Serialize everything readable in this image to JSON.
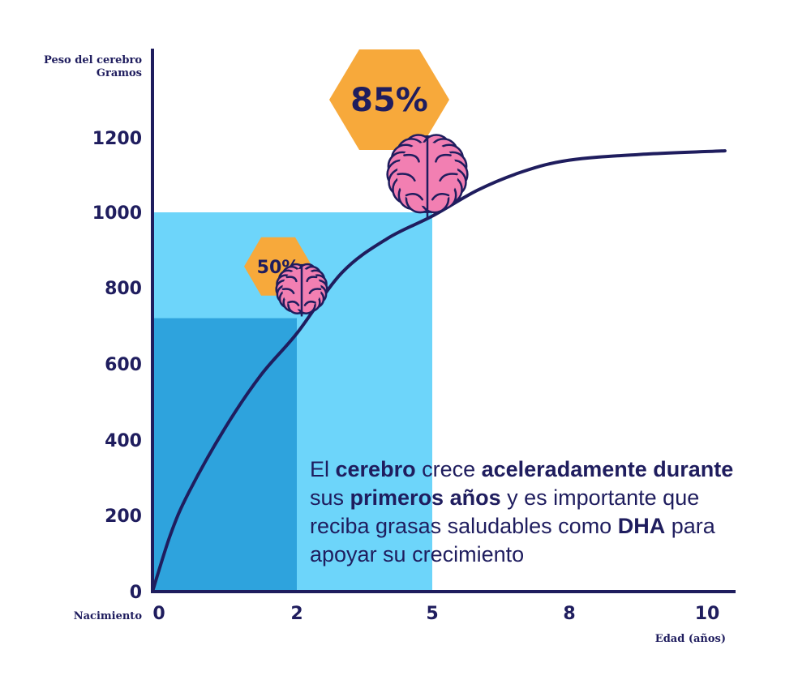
{
  "chart_data": {
    "type": "line",
    "ylabel_lines": [
      "Peso del cerebro",
      "Gramos"
    ],
    "xlabel": "Edad (años)",
    "x_origin_label": "Nacimiento",
    "x_ticks": [
      {
        "value": 0,
        "label": "0"
      },
      {
        "value": 2,
        "label": "2"
      },
      {
        "value": 5,
        "label": "5"
      },
      {
        "value": 8,
        "label": "8"
      },
      {
        "value": 10,
        "label": "10"
      }
    ],
    "y_ticks": [
      0,
      200,
      400,
      600,
      800,
      1000,
      1200
    ],
    "ylim": [
      0,
      1400
    ],
    "xlim": [
      0,
      10.4
    ],
    "series": [
      {
        "x": [
          0,
          0.25,
          0.5,
          1,
          1.5,
          2,
          3,
          4,
          5,
          6,
          7,
          8,
          9,
          10.25
        ],
        "y": [
          0,
          150,
          260,
          430,
          570,
          680,
          840,
          930,
          990,
          1060,
          1110,
          1140,
          1155,
          1165
        ],
        "color": "#1f1d5e"
      }
    ],
    "regions": [
      {
        "x_to": 5,
        "y_to": 1000,
        "color": "#6dd5fa"
      },
      {
        "x_to": 2,
        "y_to": 720,
        "color": "#2ea3dd"
      }
    ],
    "markers": [
      {
        "label": "50%",
        "x": 2,
        "y": 760,
        "size": "small"
      },
      {
        "label": "85%",
        "x": 5,
        "y": 1000,
        "size": "large"
      }
    ],
    "colors": {
      "axis": "#1f1d5e",
      "badge": "#f7a93b",
      "brain": "#f27fb2",
      "brain_outline": "#1f1d5e"
    }
  },
  "note": {
    "segments": [
      {
        "text": "El ",
        "bold": false
      },
      {
        "text": "cerebro",
        "bold": true
      },
      {
        "text": " crece ",
        "bold": false
      },
      {
        "text": "aceleradamente",
        "bold": true
      },
      {
        "text": " ",
        "bold": false
      },
      {
        "text": "durante",
        "bold": true
      },
      {
        "text": " sus ",
        "bold": false
      },
      {
        "text": "primeros años",
        "bold": true
      },
      {
        "text": " y es importante que reciba grasas saludables como ",
        "bold": false
      },
      {
        "text": "DHA",
        "bold": true
      },
      {
        "text": " para apoyar su crecimiento",
        "bold": false
      }
    ]
  }
}
